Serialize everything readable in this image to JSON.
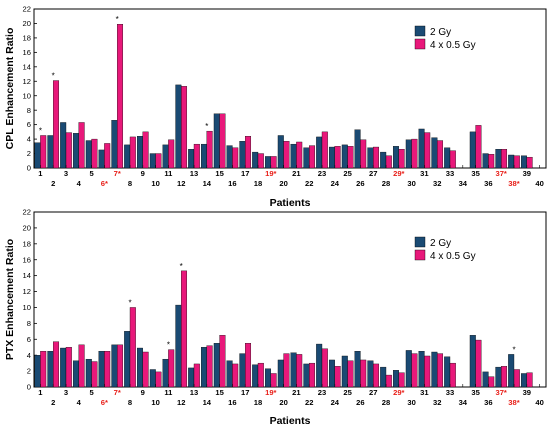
{
  "chart_data": [
    {
      "type": "bar",
      "ylabel": "CPL Enhancement Ratio",
      "xlabel": "Patients",
      "ylim": [
        0,
        22
      ],
      "yticks": [
        0,
        2,
        4,
        6,
        8,
        10,
        12,
        14,
        16,
        18,
        20,
        22
      ],
      "categories": [
        "1",
        "2",
        "3",
        "4",
        "5",
        "6*",
        "7*",
        "8",
        "9",
        "10",
        "11",
        "12",
        "13",
        "14",
        "15",
        "16",
        "17",
        "18",
        "19*",
        "20",
        "21",
        "22",
        "23",
        "24",
        "25",
        "26",
        "27",
        "28",
        "29*",
        "30",
        "31",
        "32",
        "33",
        "34",
        "35",
        "36",
        "37*",
        "38*",
        "39",
        "40"
      ],
      "highlight_categories": [
        "6*",
        "7*",
        "19*",
        "29*",
        "37*",
        "38*"
      ],
      "series": [
        {
          "name": "2 Gy",
          "color": "#1a4a73",
          "values": [
            3.5,
            4.5,
            6.3,
            4.8,
            3.8,
            2.5,
            6.6,
            3.2,
            4.4,
            2.0,
            3.2,
            11.5,
            2.6,
            3.3,
            7.5,
            3.1,
            3.7,
            2.2,
            1.6,
            4.5,
            3.3,
            2.8,
            4.3,
            2.9,
            3.2,
            5.3,
            2.8,
            2.2,
            3.0,
            3.9,
            5.4,
            4.2,
            2.8,
            0,
            5.0,
            2.0,
            2.6,
            1.8,
            1.7,
            0
          ]
        },
        {
          "name": "4 x 0.5 Gy",
          "color": "#e8187a",
          "values": [
            4.5,
            12.1,
            4.9,
            6.3,
            4.0,
            3.4,
            19.9,
            4.3,
            5.0,
            2.0,
            3.9,
            11.3,
            3.3,
            5.1,
            7.5,
            2.8,
            4.4,
            2.0,
            1.6,
            3.7,
            3.6,
            3.1,
            5.0,
            3.0,
            3.0,
            3.9,
            2.9,
            1.7,
            2.6,
            4.0,
            4.9,
            3.8,
            2.4,
            0,
            5.9,
            1.9,
            2.6,
            1.7,
            1.5,
            0
          ]
        }
      ],
      "significance_markers": [
        "1",
        "2",
        "7*",
        "14"
      ]
    },
    {
      "type": "bar",
      "ylabel": "PTX Enhancement Ratio",
      "xlabel": "Patients",
      "ylim": [
        0,
        22
      ],
      "yticks": [
        0,
        2,
        4,
        6,
        8,
        10,
        12,
        14,
        16,
        18,
        20,
        22
      ],
      "categories": [
        "1",
        "2",
        "3",
        "4",
        "5",
        "6*",
        "7*",
        "8",
        "9",
        "10",
        "11",
        "12",
        "13",
        "14",
        "15",
        "16",
        "17",
        "18",
        "19*",
        "20",
        "21",
        "22",
        "23",
        "24",
        "25",
        "26",
        "27",
        "28",
        "29*",
        "30",
        "31",
        "32",
        "33",
        "34",
        "35",
        "36",
        "37*",
        "38*",
        "39",
        "40"
      ],
      "highlight_categories": [
        "6*",
        "7*",
        "19*",
        "29*",
        "37*",
        "38*"
      ],
      "series": [
        {
          "name": "2 Gy",
          "color": "#1a4a73",
          "values": [
            4.0,
            4.5,
            4.9,
            3.3,
            3.5,
            4.5,
            5.3,
            7.0,
            4.9,
            2.2,
            3.5,
            10.3,
            2.4,
            5.0,
            5.5,
            3.3,
            4.2,
            2.8,
            2.3,
            3.4,
            4.3,
            2.9,
            5.4,
            3.4,
            3.9,
            4.5,
            3.3,
            2.5,
            2.1,
            4.6,
            4.5,
            4.4,
            3.8,
            0,
            6.5,
            1.9,
            2.5,
            4.1,
            1.7,
            0
          ]
        },
        {
          "name": "4 x 0.5 Gy",
          "color": "#e8187a",
          "values": [
            4.5,
            5.7,
            5.0,
            5.3,
            3.2,
            4.5,
            5.3,
            10.0,
            4.4,
            1.9,
            4.7,
            14.6,
            2.9,
            5.2,
            6.5,
            2.9,
            5.5,
            3.0,
            1.7,
            4.2,
            4.1,
            3.0,
            4.8,
            2.6,
            3.3,
            3.4,
            2.9,
            1.5,
            1.8,
            4.2,
            3.9,
            4.2,
            3.0,
            0,
            5.9,
            1.3,
            2.6,
            2.2,
            1.8,
            0
          ]
        }
      ],
      "significance_markers": [
        "8",
        "11",
        "12",
        "38*"
      ]
    }
  ]
}
